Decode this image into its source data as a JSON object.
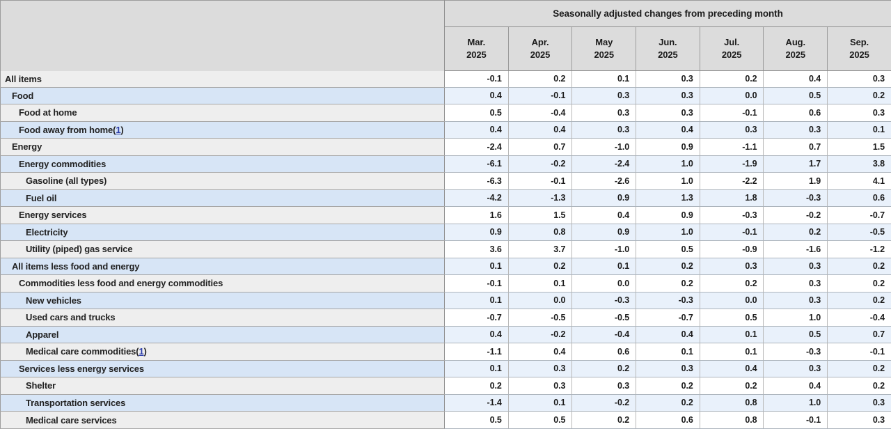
{
  "page": {
    "title_band": "Seasonally adjusted changes from preceding month"
  },
  "table": {
    "columns": [
      {
        "month": "Mar.",
        "year": "2025"
      },
      {
        "month": "Apr.",
        "year": "2025"
      },
      {
        "month": "May",
        "year": "2025"
      },
      {
        "month": "Jun.",
        "year": "2025"
      },
      {
        "month": "Jul.",
        "year": "2025"
      },
      {
        "month": "Aug.",
        "year": "2025"
      },
      {
        "month": "Sep.",
        "year": "2025"
      }
    ],
    "rows": [
      {
        "label": "All items",
        "indent": 0,
        "footnote": null,
        "values": [
          "-0.1",
          "0.2",
          "0.1",
          "0.3",
          "0.2",
          "0.4",
          "0.3"
        ]
      },
      {
        "label": "Food",
        "indent": 1,
        "footnote": null,
        "values": [
          "0.4",
          "-0.1",
          "0.3",
          "0.3",
          "0.0",
          "0.5",
          "0.2"
        ]
      },
      {
        "label": "Food at home",
        "indent": 2,
        "footnote": null,
        "values": [
          "0.5",
          "-0.4",
          "0.3",
          "0.3",
          "-0.1",
          "0.6",
          "0.3"
        ]
      },
      {
        "label": "Food away from home",
        "indent": 2,
        "footnote": "1",
        "values": [
          "0.4",
          "0.4",
          "0.3",
          "0.4",
          "0.3",
          "0.3",
          "0.1"
        ]
      },
      {
        "label": "Energy",
        "indent": 1,
        "footnote": null,
        "values": [
          "-2.4",
          "0.7",
          "-1.0",
          "0.9",
          "-1.1",
          "0.7",
          "1.5"
        ]
      },
      {
        "label": "Energy commodities",
        "indent": 2,
        "footnote": null,
        "values": [
          "-6.1",
          "-0.2",
          "-2.4",
          "1.0",
          "-1.9",
          "1.7",
          "3.8"
        ]
      },
      {
        "label": "Gasoline (all types)",
        "indent": 3,
        "footnote": null,
        "values": [
          "-6.3",
          "-0.1",
          "-2.6",
          "1.0",
          "-2.2",
          "1.9",
          "4.1"
        ]
      },
      {
        "label": "Fuel oil",
        "indent": 3,
        "footnote": null,
        "values": [
          "-4.2",
          "-1.3",
          "0.9",
          "1.3",
          "1.8",
          "-0.3",
          "0.6"
        ]
      },
      {
        "label": "Energy services",
        "indent": 2,
        "footnote": null,
        "values": [
          "1.6",
          "1.5",
          "0.4",
          "0.9",
          "-0.3",
          "-0.2",
          "-0.7"
        ]
      },
      {
        "label": "Electricity",
        "indent": 3,
        "footnote": null,
        "values": [
          "0.9",
          "0.8",
          "0.9",
          "1.0",
          "-0.1",
          "0.2",
          "-0.5"
        ]
      },
      {
        "label": "Utility (piped) gas service",
        "indent": 3,
        "footnote": null,
        "values": [
          "3.6",
          "3.7",
          "-1.0",
          "0.5",
          "-0.9",
          "-1.6",
          "-1.2"
        ]
      },
      {
        "label": "All items less food and energy",
        "indent": 1,
        "footnote": null,
        "values": [
          "0.1",
          "0.2",
          "0.1",
          "0.2",
          "0.3",
          "0.3",
          "0.2"
        ]
      },
      {
        "label": "Commodities less food and energy commodities",
        "indent": 2,
        "footnote": null,
        "values": [
          "-0.1",
          "0.1",
          "0.0",
          "0.2",
          "0.2",
          "0.3",
          "0.2"
        ]
      },
      {
        "label": "New vehicles",
        "indent": 3,
        "footnote": null,
        "values": [
          "0.1",
          "0.0",
          "-0.3",
          "-0.3",
          "0.0",
          "0.3",
          "0.2"
        ]
      },
      {
        "label": "Used cars and trucks",
        "indent": 3,
        "footnote": null,
        "values": [
          "-0.7",
          "-0.5",
          "-0.5",
          "-0.7",
          "0.5",
          "1.0",
          "-0.4"
        ]
      },
      {
        "label": "Apparel",
        "indent": 3,
        "footnote": null,
        "values": [
          "0.4",
          "-0.2",
          "-0.4",
          "0.4",
          "0.1",
          "0.5",
          "0.7"
        ]
      },
      {
        "label": "Medical care commodities",
        "indent": 3,
        "footnote": "1",
        "values": [
          "-1.1",
          "0.4",
          "0.6",
          "0.1",
          "0.1",
          "-0.3",
          "-0.1"
        ]
      },
      {
        "label": "Services less energy services",
        "indent": 2,
        "footnote": null,
        "values": [
          "0.1",
          "0.3",
          "0.2",
          "0.3",
          "0.4",
          "0.3",
          "0.2"
        ]
      },
      {
        "label": "Shelter",
        "indent": 3,
        "footnote": null,
        "values": [
          "0.2",
          "0.3",
          "0.3",
          "0.2",
          "0.2",
          "0.4",
          "0.2"
        ]
      },
      {
        "label": "Transportation services",
        "indent": 3,
        "footnote": null,
        "values": [
          "-1.4",
          "0.1",
          "-0.2",
          "0.2",
          "0.8",
          "1.0",
          "0.3"
        ]
      },
      {
        "label": "Medical care services",
        "indent": 3,
        "footnote": null,
        "values": [
          "0.5",
          "0.5",
          "0.2",
          "0.6",
          "0.8",
          "-0.1",
          "0.3"
        ]
      }
    ],
    "colors": {
      "header_bg": "#dcdcdc",
      "label_row_bg": "#eeeeee",
      "label_row_alt_bg": "#d7e5f6",
      "data_row_bg": "#ffffff",
      "data_row_alt_bg": "#e9f1fb",
      "footnote_link": "#2b3caa"
    }
  }
}
